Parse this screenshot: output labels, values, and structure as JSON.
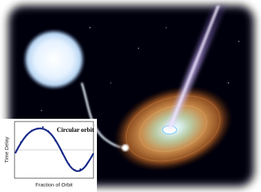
{
  "inset": {
    "title": "Circular orbit",
    "y_label": "Time Delay",
    "x_label": "Fraction of Orbit"
  }
}
